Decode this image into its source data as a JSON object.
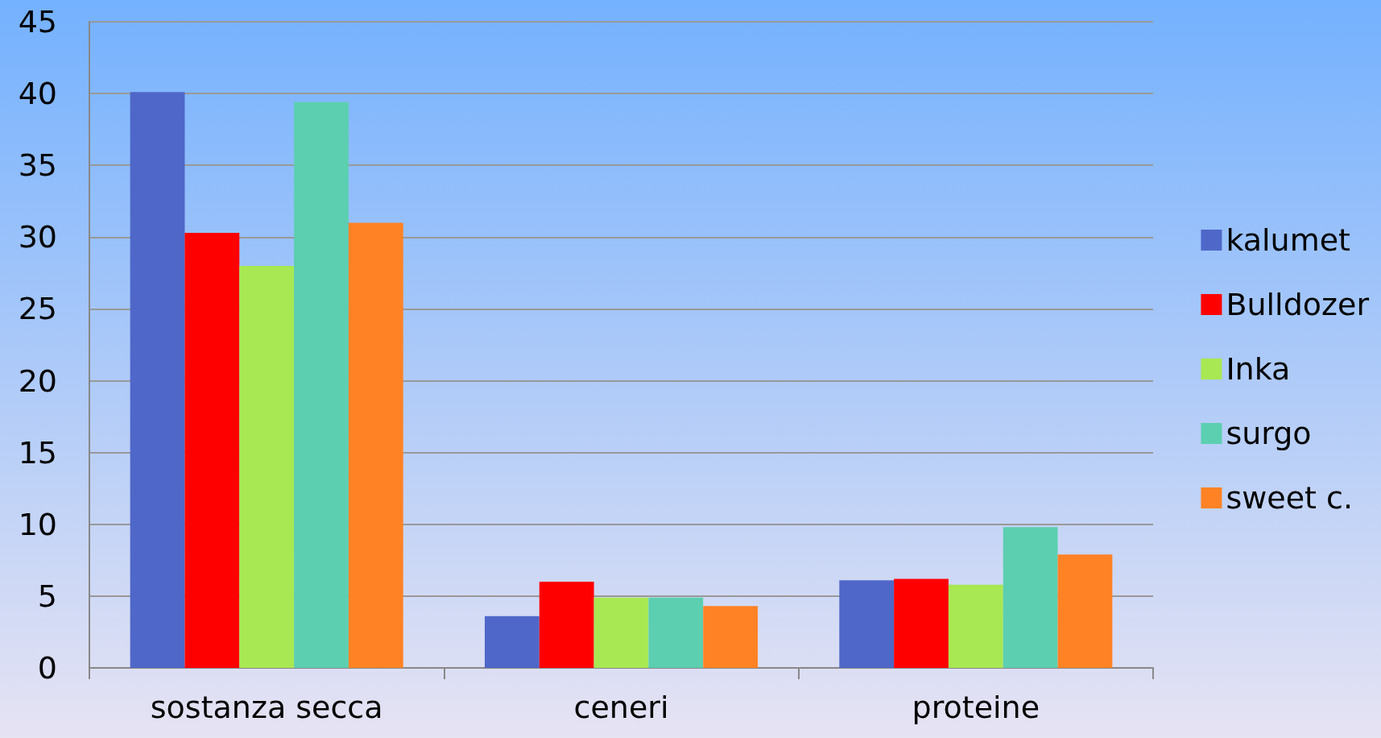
{
  "chart_data": {
    "type": "bar",
    "categories": [
      "sostanza secca",
      "ceneri",
      "proteine"
    ],
    "series": [
      {
        "name": "kalumet",
        "color": "#4f67c8",
        "values": [
          40.1,
          3.6,
          6.1
        ]
      },
      {
        "name": "Bulldozer",
        "color": "#ff0000",
        "values": [
          30.3,
          6.0,
          6.2
        ]
      },
      {
        "name": "Inka",
        "color": "#a8e853",
        "values": [
          28.0,
          4.9,
          5.8
        ]
      },
      {
        "name": "surgo",
        "color": "#5ccfb0",
        "values": [
          39.4,
          4.9,
          9.8
        ]
      },
      {
        "name": "sweet c.",
        "color": "#ff8225",
        "values": [
          31.0,
          4.3,
          7.9
        ]
      }
    ],
    "ylim": [
      0,
      45
    ],
    "yticks": [
      0,
      5,
      10,
      15,
      20,
      25,
      30,
      35,
      40,
      45
    ],
    "grid": "y",
    "legend": "right"
  }
}
